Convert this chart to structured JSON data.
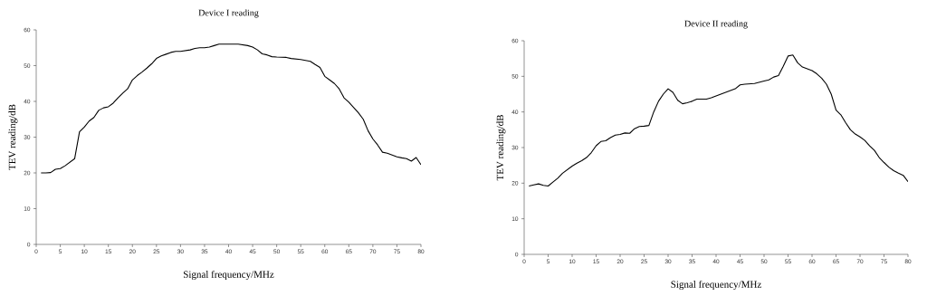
{
  "chart_data": [
    {
      "type": "line",
      "title": "Device I reading",
      "xlabel": "Signal frequency/MHz",
      "ylabel": "TEV reading/dB",
      "color": "#000000",
      "xlim": [
        0,
        80
      ],
      "ylim": [
        0,
        60
      ],
      "xticks": [
        0,
        5,
        10,
        15,
        20,
        25,
        30,
        35,
        40,
        45,
        50,
        55,
        60,
        65,
        70,
        75,
        80
      ],
      "yticks": [
        0,
        10,
        20,
        30,
        40,
        50,
        60
      ],
      "x": [
        1,
        2,
        3,
        4,
        5,
        6,
        7,
        8,
        9,
        10,
        11,
        12,
        13,
        14,
        15,
        16,
        17,
        18,
        19,
        20,
        21,
        22,
        23,
        24,
        25,
        26,
        27,
        28,
        29,
        30,
        31,
        32,
        33,
        34,
        35,
        36,
        37,
        38,
        40,
        42,
        44,
        45,
        46,
        47,
        48,
        49,
        50,
        52,
        53,
        55,
        57,
        58,
        59,
        60,
        61,
        62,
        63,
        64,
        65,
        66,
        67,
        68,
        69,
        70,
        71,
        72,
        73,
        74,
        75,
        76,
        77,
        78,
        79,
        80
      ],
      "values": [
        20,
        20,
        20.1,
        21,
        21.2,
        22,
        23,
        24,
        31.5,
        32.8,
        34.5,
        35.5,
        37.5,
        38.2,
        38.5,
        39.5,
        41,
        42.3,
        43.5,
        46,
        47.2,
        48.2,
        49.3,
        50.5,
        52,
        52.7,
        53.2,
        53.7,
        54,
        54,
        54.2,
        54.4,
        54.8,
        55,
        55,
        55.2,
        55.6,
        56,
        56,
        56,
        55.6,
        55.2,
        54.4,
        53.3,
        53,
        52.5,
        52.4,
        52.3,
        52,
        51.7,
        51.2,
        50.3,
        49.5,
        47,
        46,
        45,
        43.5,
        41,
        39.8,
        38.3,
        36.8,
        35,
        31.8,
        29.5,
        27.8,
        25.8,
        25.5,
        25,
        24.5,
        24.2,
        24,
        23.3,
        24.3,
        22.3
      ]
    },
    {
      "type": "line",
      "title": "Device II reading",
      "xlabel": "Signal frequency/MHz",
      "ylabel": "TEV reading/dB",
      "color": "#000000",
      "xlim": [
        0,
        80
      ],
      "ylim": [
        0,
        60
      ],
      "xticks": [
        0,
        5,
        10,
        15,
        20,
        25,
        30,
        35,
        40,
        45,
        50,
        55,
        60,
        65,
        70,
        75,
        80
      ],
      "yticks": [
        0,
        10,
        20,
        30,
        40,
        50,
        60
      ],
      "x": [
        1,
        2,
        3,
        4,
        5,
        6,
        7,
        8,
        9,
        10,
        11,
        12,
        13,
        14,
        15,
        16,
        17,
        18,
        19,
        20,
        21,
        22,
        23,
        24,
        25,
        26,
        27,
        28,
        29,
        30,
        31,
        32,
        33,
        34,
        35,
        36,
        37,
        38,
        39,
        40,
        42,
        44,
        45,
        46,
        48,
        50,
        51,
        52,
        53,
        54,
        55,
        56,
        57,
        58,
        60,
        61,
        62,
        63,
        64,
        65,
        66,
        67,
        68,
        69,
        70,
        71,
        72,
        73,
        74,
        75,
        76,
        77,
        78,
        79,
        80
      ],
      "values": [
        19.2,
        19.5,
        19.8,
        19.4,
        19.2,
        20.3,
        21.4,
        22.8,
        23.8,
        24.8,
        25.6,
        26.3,
        27.2,
        28.6,
        30.5,
        31.7,
        31.9,
        32.8,
        33.5,
        33.7,
        34.1,
        34,
        35.3,
        35.9,
        36,
        36.2,
        40,
        43,
        45,
        46.5,
        45.5,
        43.3,
        42.3,
        42.6,
        43,
        43.6,
        43.6,
        43.6,
        44,
        44.5,
        45.5,
        46.5,
        47.6,
        47.8,
        48,
        48.7,
        49,
        49.8,
        50.2,
        52.8,
        55.7,
        56,
        53.8,
        52.6,
        51.6,
        50.7,
        49.5,
        47.8,
        45,
        40.5,
        39.2,
        37,
        35,
        33.8,
        33,
        32,
        30.5,
        29.2,
        27.2,
        25.8,
        24.5,
        23.5,
        22.8,
        22.2,
        20.4
      ]
    }
  ]
}
